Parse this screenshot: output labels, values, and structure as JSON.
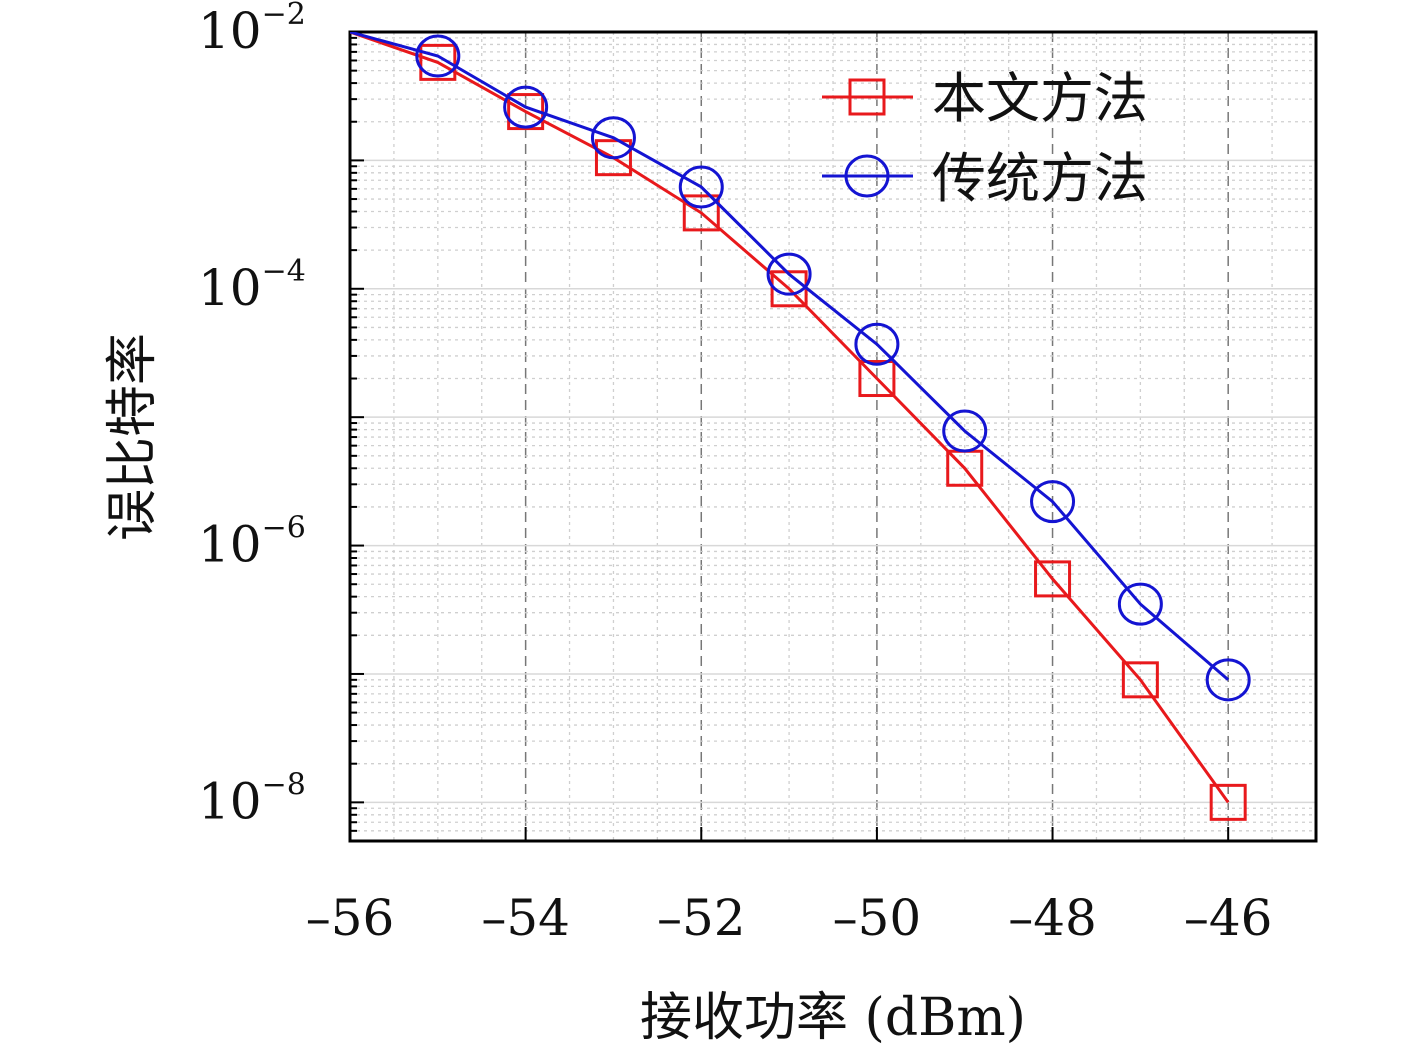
{
  "chart_data": {
    "type": "line",
    "title": "",
    "xlabel": "接收功率 (dBm)",
    "ylabel": "误比特率",
    "xlim": [
      -56,
      -45
    ],
    "ylim": [
      5e-09,
      0.01
    ],
    "yscale": "log",
    "x_ticks": [
      -56,
      -54,
      -52,
      -50,
      -48,
      -46
    ],
    "x_tick_labels": [
      "–56",
      "–54",
      "–52",
      "–50",
      "–48",
      "–46"
    ],
    "y_ticks": [
      {
        "value": 0.01,
        "base": "10",
        "exp": "−2"
      },
      {
        "value": 0.0001,
        "base": "10",
        "exp": "−4"
      },
      {
        "value": 1e-06,
        "base": "10",
        "exp": "−6"
      },
      {
        "value": 1e-08,
        "base": "10",
        "exp": "−8"
      }
    ],
    "grid": true,
    "legend_position": "top-right",
    "series": [
      {
        "name": "本文方法",
        "color": "#e8191c",
        "marker": "square",
        "x": [
          -56,
          -55,
          -54,
          -53,
          -52,
          -51,
          -50,
          -49,
          -48,
          -47,
          -46
        ],
        "y": [
          0.01,
          0.0058,
          0.0024,
          0.00105,
          0.00039,
          0.0001,
          2e-05,
          4e-06,
          5.5e-07,
          9e-08,
          1e-08
        ]
      },
      {
        "name": "传统方法",
        "color": "#1414d2",
        "marker": "circle",
        "x": [
          -56,
          -55,
          -54,
          -53,
          -52,
          -51,
          -50,
          -49,
          -48,
          -47,
          -46
        ],
        "y": [
          0.01,
          0.0065,
          0.0026,
          0.0015,
          0.00062,
          0.00013,
          3.7e-05,
          7.8e-06,
          2.2e-06,
          3.5e-07,
          9e-08
        ]
      }
    ]
  }
}
